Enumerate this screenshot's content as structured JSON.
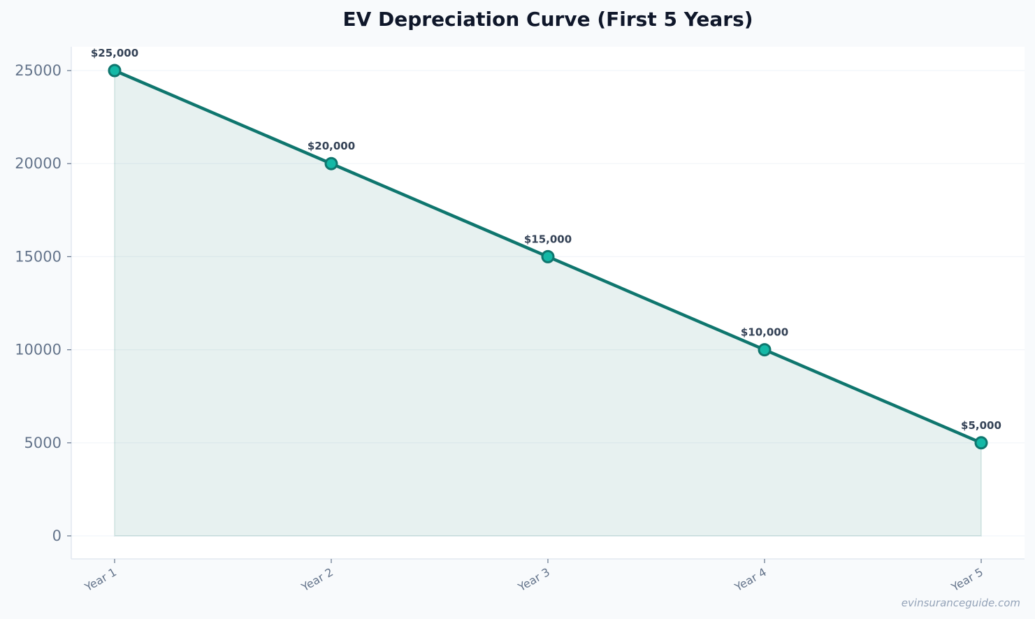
{
  "chart_data": {
    "type": "line",
    "title": "EV Depreciation Curve (First 5 Years)",
    "xlabel": "",
    "ylabel": "",
    "categories": [
      "Year 1",
      "Year 2",
      "Year 3",
      "Year 4",
      "Year 5"
    ],
    "series": [
      {
        "values": [
          25000,
          20000,
          15000,
          10000,
          5000
        ],
        "labels": [
          "$25,000",
          "$20,000",
          "$15,000",
          "$10,000",
          "$5,000"
        ],
        "color": "#0f766e",
        "marker_color": "#14b8a6",
        "fill_color": "#0f766e"
      }
    ],
    "y_ticks": [
      0,
      5000,
      10000,
      15000,
      20000,
      25000
    ],
    "ylim": [
      -1200,
      26300
    ],
    "grid": true,
    "area_fill": true,
    "watermark": "evinsuranceguide.com",
    "colors": {
      "page_background": "#f8fafc",
      "plot_background": "#ffffff",
      "gridline": "#f1f5f9",
      "axis": "#e2e8f0"
    }
  }
}
